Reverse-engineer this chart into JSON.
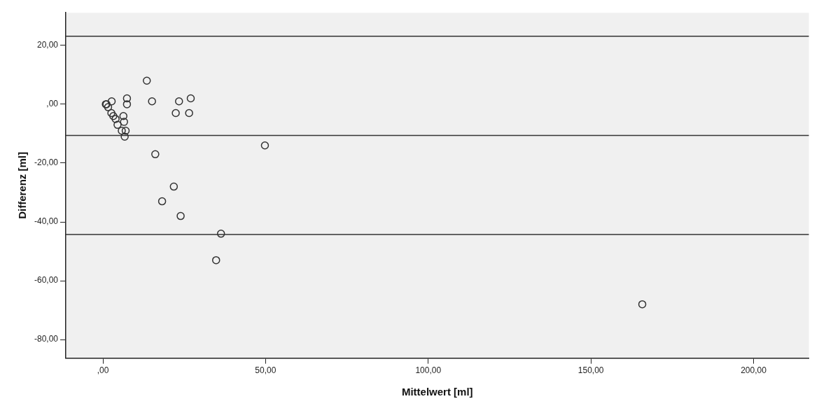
{
  "chart_data": {
    "type": "scatter",
    "xlabel": "Mittelwert [ml]",
    "ylabel": "Differenz [ml]",
    "x": [
      0.9,
      1.1,
      1.6,
      2.7,
      2.6,
      3.2,
      3.9,
      4.5,
      5.8,
      6.3,
      6.5,
      6.7,
      7.0,
      7.4,
      7.4,
      13.5,
      15.1,
      16.1,
      18.2,
      21.8,
      22.4,
      23.4,
      23.9,
      26.5,
      27.0,
      34.8,
      36.3,
      49.8,
      165.8
    ],
    "series": [
      {
        "color": "#333333",
        "values": [
          0,
          0,
          -1,
          1,
          -3,
          -4,
          -5,
          -7,
          -9,
          -4,
          -6,
          -11,
          -9,
          2,
          0,
          8,
          1,
          -17,
          -33,
          -28,
          -3,
          1,
          -38,
          -3,
          2,
          -53,
          -44,
          -14,
          -68
        ]
      }
    ],
    "xlim": [
      -11.4,
      217
    ],
    "ylim": [
      -86.3,
      31.1
    ],
    "xticks": [
      {
        "value": 0,
        "label": ",00"
      },
      {
        "value": 50,
        "label": "50,00"
      },
      {
        "value": 100,
        "label": "100,00"
      },
      {
        "value": 150,
        "label": "150,00"
      },
      {
        "value": 200,
        "label": "200,00"
      }
    ],
    "yticks": [
      {
        "value": -80,
        "label": "-80,00"
      },
      {
        "value": -60,
        "label": "-60,00"
      },
      {
        "value": -40,
        "label": "-40,00"
      },
      {
        "value": -20,
        "label": "-20,00"
      },
      {
        "value": 0,
        "label": ",00"
      },
      {
        "value": 20,
        "label": "20,00"
      }
    ],
    "ref_lines": [
      {
        "axis": "y",
        "value": 23.1,
        "color": "#333333"
      },
      {
        "axis": "y",
        "value": -10.6,
        "color": "#333333"
      },
      {
        "axis": "y",
        "value": -44.3,
        "color": "#333333"
      }
    ],
    "marker": "circle",
    "grid": false,
    "legend": false
  }
}
